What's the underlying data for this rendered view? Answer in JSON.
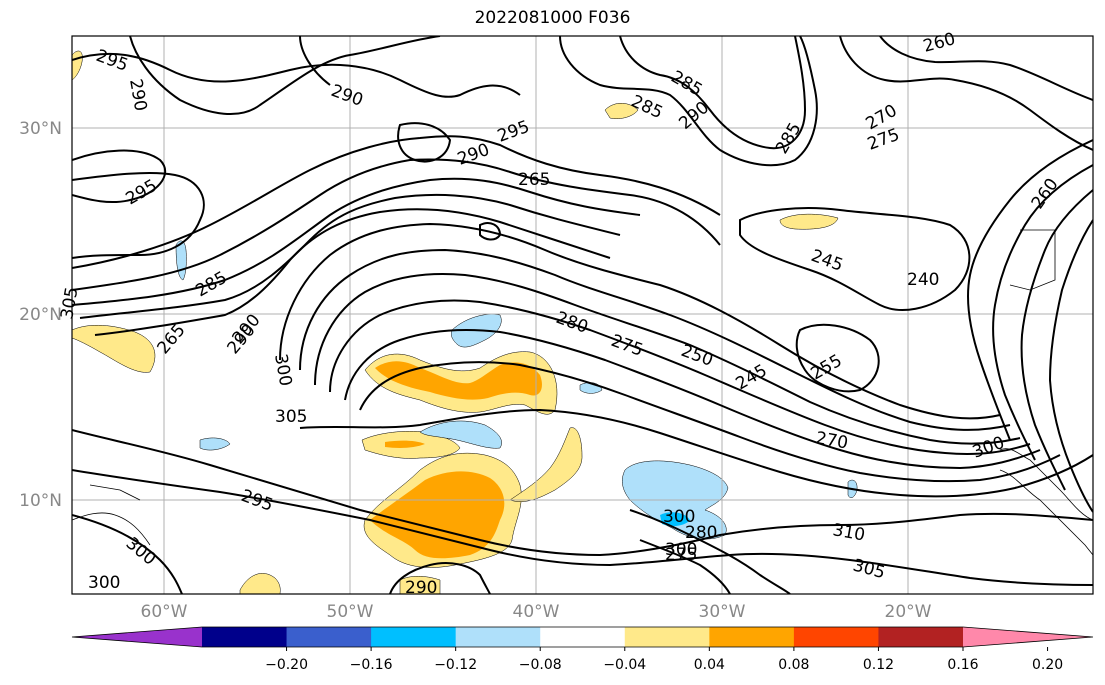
{
  "title": "2022081000 F036",
  "map": {
    "lat_labels": [
      "30°N",
      "20°N",
      "10°N"
    ],
    "lon_labels": [
      "60°W",
      "50°W",
      "40°W",
      "30°W",
      "20°W"
    ],
    "contour_labels": [
      "295",
      "290",
      "290",
      "285",
      "285",
      "290",
      "295",
      "290",
      "265",
      "260",
      "270",
      "275",
      "285",
      "295",
      "285",
      "265",
      "290",
      "300",
      "260",
      "245",
      "240",
      "280",
      "275",
      "250",
      "245",
      "255",
      "305",
      "270",
      "300",
      "295",
      "310",
      "300",
      "305",
      "290",
      "280",
      "300",
      "300",
      "290",
      "305",
      "300",
      "275"
    ]
  },
  "colorbar": {
    "ticks": [
      "−0.20",
      "−0.16",
      "−0.12",
      "−0.08",
      "−0.04",
      "0.04",
      "0.08",
      "0.12",
      "0.16",
      "0.20"
    ],
    "colors": [
      "#9932cc",
      "#00008b",
      "#3a5fcd",
      "#00bfff",
      "#afe0fa",
      "#ffffff",
      "#ffe98a",
      "#ffa500",
      "#ff4500",
      "#b22222",
      "#ff88aa"
    ]
  }
}
